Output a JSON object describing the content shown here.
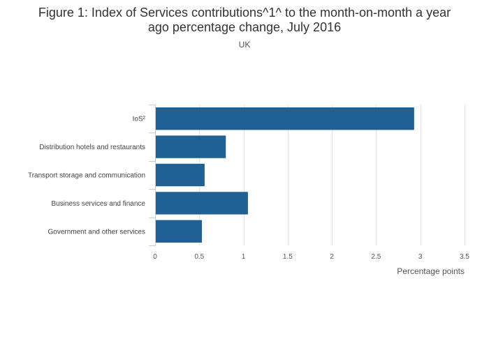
{
  "chart_data": {
    "type": "bar",
    "orientation": "horizontal",
    "title_lines": [
      "Figure 1: Index of Services contributions^1^ to the month-on-month a year",
      "ago percentage change, July 2016"
    ],
    "subtitle": "UK",
    "categories": [
      "IoS²",
      "Distribution hotels and restaurants",
      "Transport storage and communication",
      "Business services and finance",
      "Government and other services"
    ],
    "values": [
      2.93,
      0.8,
      0.56,
      1.05,
      0.53
    ],
    "xlabel": "Percentage points",
    "ylabel": "",
    "xlim": [
      0,
      3.5
    ],
    "xticks": [
      "0",
      "0.5",
      "1",
      "1.5",
      "2",
      "2.5",
      "3",
      "3.5"
    ],
    "bar_color": "#206095",
    "grid": true
  }
}
